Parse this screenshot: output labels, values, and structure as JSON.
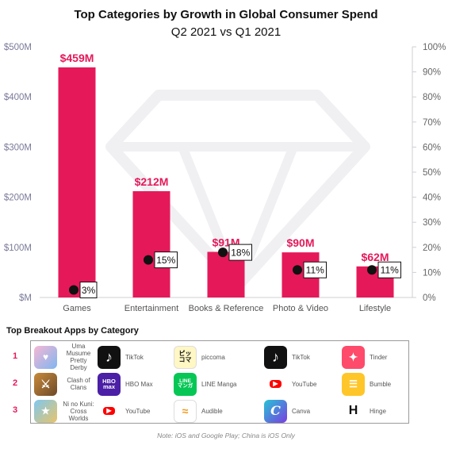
{
  "chart_data": {
    "type": "bar",
    "title": "Top Categories by Growth in Global Consumer Spend",
    "subtitle": "Q2 2021 vs Q1 2021",
    "categories": [
      "Games",
      "Entertainment",
      "Books & Reference",
      "Photo & Video",
      "Lifestyle"
    ],
    "series": [
      {
        "values": [
          459,
          212,
          91,
          90,
          62
        ],
        "labels": [
          "$459M",
          "$212M",
          "$91M",
          "$90M",
          "$62M"
        ],
        "axis": "left",
        "color": "#e5195a"
      },
      {
        "values": [
          3,
          15,
          18,
          11,
          11
        ],
        "labels": [
          "3%",
          "15%",
          "18%",
          "11%",
          "11%"
        ],
        "axis": "right",
        "marker": "dot",
        "color": "#111111"
      }
    ],
    "left_axis": {
      "ylim": [
        0,
        500
      ],
      "ticks": [
        "$M",
        "$100M",
        "$200M",
        "$300M",
        "$400M",
        "$500M"
      ]
    },
    "right_axis": {
      "ylim": [
        0,
        100
      ],
      "ticks": [
        "0%",
        "10%",
        "20%",
        "30%",
        "40%",
        "50%",
        "60%",
        "70%",
        "80%",
        "90%",
        "100%"
      ]
    },
    "grid": false
  },
  "breakout": {
    "title": "Top Breakout Apps by Category",
    "ranks": [
      "1",
      "2",
      "3"
    ],
    "rows": [
      [
        {
          "name": "Uma Musume Pretty Derby",
          "icon": "uma-musume-icon"
        },
        {
          "name": "TikTok",
          "icon": "tiktok-icon"
        },
        {
          "name": "piccoma",
          "icon": "piccoma-icon"
        },
        {
          "name": "TikTok",
          "icon": "tiktok-icon"
        },
        {
          "name": "Tinder",
          "icon": "tinder-icon"
        }
      ],
      [
        {
          "name": "Clash of Clans",
          "icon": "clash-of-clans-icon"
        },
        {
          "name": "HBO Max",
          "icon": "hbo-max-icon"
        },
        {
          "name": "LINE Manga",
          "icon": "line-manga-icon"
        },
        {
          "name": "YouTube",
          "icon": "youtube-icon"
        },
        {
          "name": "Bumble",
          "icon": "bumble-icon"
        }
      ],
      [
        {
          "name": "Ni no Kuni: Cross Worlds",
          "icon": "ni-no-kuni-icon"
        },
        {
          "name": "YouTube",
          "icon": "youtube-icon"
        },
        {
          "name": "Audible",
          "icon": "audible-icon"
        },
        {
          "name": "Canva",
          "icon": "canva-icon"
        },
        {
          "name": "Hinge",
          "icon": "hinge-icon"
        }
      ]
    ]
  },
  "icon_glyphs": {
    "piccoma": "ピッ\nコマ",
    "hbo": "HBO\nmax",
    "line_manga": "LINE\nマンガ",
    "hinge": "H"
  },
  "note": "Note: iOS and Google Play; China is iOS Only",
  "colors": {
    "accent": "#e5195a",
    "axis_text": "#7a7a9a",
    "right_axis_text": "#666666"
  }
}
